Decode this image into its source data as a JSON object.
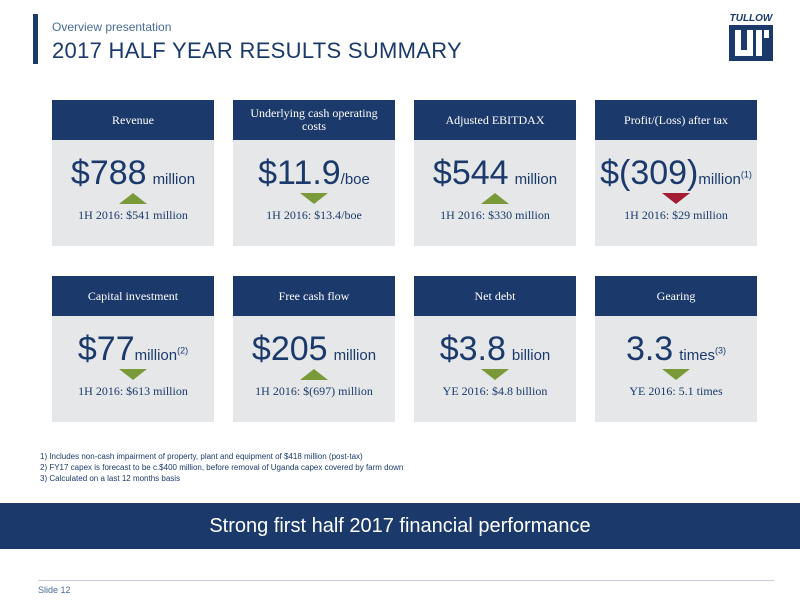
{
  "header": {
    "kicker": "Overview presentation",
    "title": "2017 HALF YEAR RESULTS SUMMARY"
  },
  "logo": {
    "text": "TULLOW",
    "icon": "tullow-logo"
  },
  "colors": {
    "navy": "#1b3a6b",
    "card_bg": "#e6e7e8",
    "up_green": "#7a9a3a",
    "down_red": "#a31d35"
  },
  "metrics": [
    {
      "title": "Revenue",
      "value": "$788",
      "unit": "million",
      "sup": "",
      "direction": "up",
      "color": "green",
      "comparison": "1H 2016: $541 million"
    },
    {
      "title": "Underlying cash operating costs",
      "value": "$11.9",
      "unit": "/boe",
      "sup": "",
      "direction": "down",
      "color": "green",
      "comparison": "1H 2016: $13.4/boe"
    },
    {
      "title": "Adjusted EBITDAX",
      "value": "$544",
      "unit": "million",
      "sup": "",
      "direction": "up",
      "color": "green",
      "comparison": "1H 2016: $330 million"
    },
    {
      "title": "Profit/(Loss) after tax",
      "value": "$(309)",
      "unit": "million",
      "sup": "(1)",
      "direction": "down",
      "color": "red",
      "comparison": "1H 2016: $29 million"
    },
    {
      "title": "Capital investment",
      "value": "$77",
      "unit": "million",
      "sup": "(2)",
      "direction": "down",
      "color": "green",
      "comparison": "1H 2016: $613 million"
    },
    {
      "title": "Free cash flow",
      "value": "$205",
      "unit": "million",
      "sup": "",
      "direction": "up",
      "color": "green",
      "comparison": "1H 2016: $(697) million"
    },
    {
      "title": "Net debt",
      "value": "$3.8",
      "unit": "billion",
      "sup": "",
      "direction": "down",
      "color": "green",
      "comparison": "YE 2016: $4.8 billion"
    },
    {
      "title": "Gearing",
      "value": "3.3",
      "unit": "times",
      "sup": "(3)",
      "direction": "down",
      "color": "green",
      "comparison": "YE 2016: 5.1 times"
    }
  ],
  "footnotes": [
    "1)   Includes non-cash impairment of property, plant and equipment of $418 million (post-tax)",
    "2)   FY17 capex is forecast to be c.$400 million, before removal of Uganda capex covered by farm down",
    "3)   Calculated on a last 12 months basis"
  ],
  "banner": "Strong first half 2017 financial performance",
  "footer": {
    "slide": "Slide 12"
  }
}
